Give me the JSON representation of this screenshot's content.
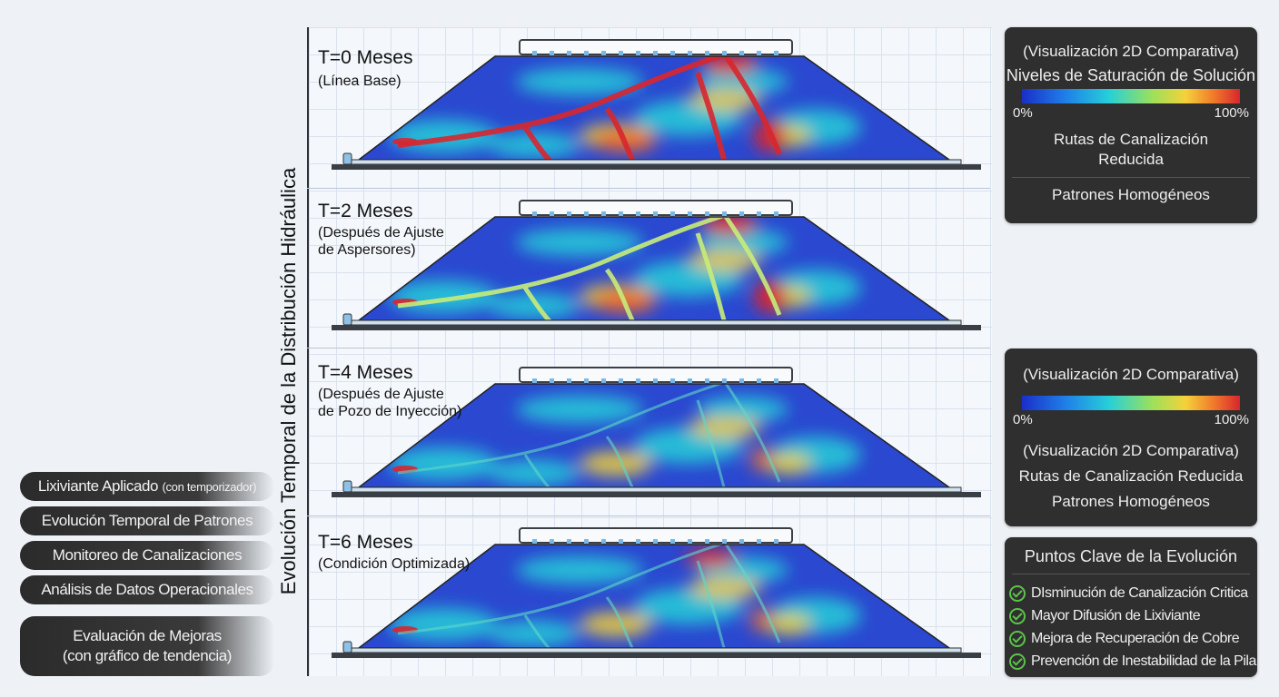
{
  "vertical_title": "Evolución Temporal de la Distribución Hidráulica",
  "panels": [
    {
      "title": "T=0 Meses",
      "subtitle": "(Línea Base)",
      "state": "critical-channeling"
    },
    {
      "title": "T=2 Meses",
      "subtitle": "(Después de Ajuste de Aspersores)",
      "subtitle_lines": [
        "(Después de Ajuste",
        "de Aspersores)"
      ],
      "state": "reduced-channeling"
    },
    {
      "title": "T=4 Meses",
      "subtitle_lines": [
        "(Después de Ajuste",
        "de Pozo de Inyección)"
      ],
      "state": "homogeneous"
    },
    {
      "title": "T=6 Meses",
      "subtitle_lines": [
        "(Condición Optimizada)"
      ],
      "state": "optimized"
    }
  ],
  "left_labels": [
    {
      "main": "Lixiviante Aplicado",
      "small": "(con temporizador)"
    },
    {
      "main": "Evolución Temporal de Patrones"
    },
    {
      "main": "Monitoreo de Canalizaciones"
    },
    {
      "main": "Análisis de Datos Operacionales"
    },
    {
      "lines": [
        "Evaluación de Mejoras",
        "(con gráfico de tendencia)"
      ]
    }
  ],
  "legend1": {
    "title": "(Visualización 2D Comparativa)",
    "subtitle": "Niveles de Saturación de Solución",
    "min": "0%",
    "max": "100%",
    "note_lines": [
      "Rutas de Canalización",
      "Reducida"
    ],
    "footer": "Patrones Homogéneos"
  },
  "legend2": {
    "title": "(Visualización 2D Comparativa)",
    "min": "0%",
    "max": "100%",
    "lines": [
      "(Visualización 2D Comparativa)",
      "Rutas de Canalización Reducida",
      "Patrones Homogéneos"
    ]
  },
  "key_points": {
    "title": "Puntos Clave de la Evolución",
    "items": [
      "DIsminución de Canalización Critica",
      "Mayor Difusión de Lixiviante",
      "Mejora de Recuperación de Cobre",
      "Prevención de Inestabilidad de la Pila"
    ],
    "check_color": "#5cc24a"
  },
  "colors": {
    "low": "#1a2fc9",
    "mid": "#26d0d8",
    "high": "#f4d23a",
    "max": "#d8262e"
  }
}
